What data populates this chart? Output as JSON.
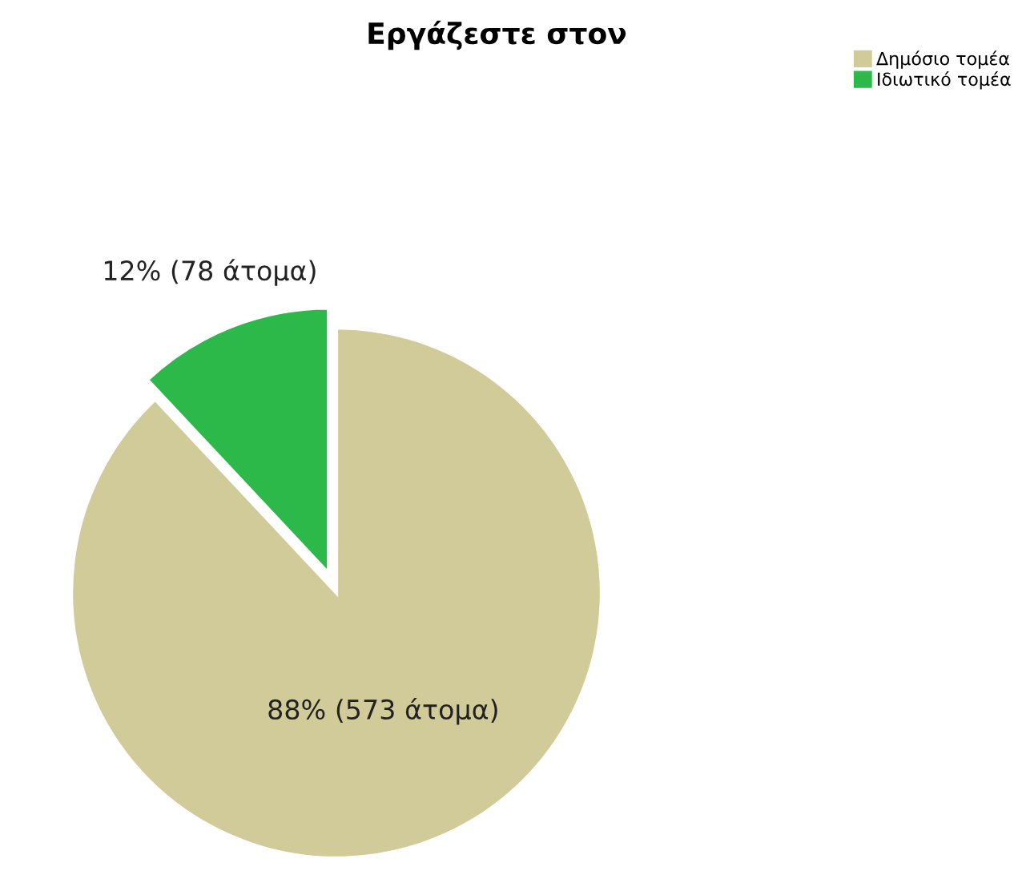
{
  "chart_data": {
    "type": "pie",
    "title": "Εργάζεστε στον",
    "categories": [
      "Δημόσιο τομέα",
      "Ιδιωτικό τομέα"
    ],
    "values": [
      573,
      78
    ],
    "colors": [
      "#d0cb98",
      "#2db84a"
    ],
    "value_labels": [
      "88% (573 άτομα)",
      "12% (78 άτομα)"
    ],
    "legend": "top right"
  }
}
